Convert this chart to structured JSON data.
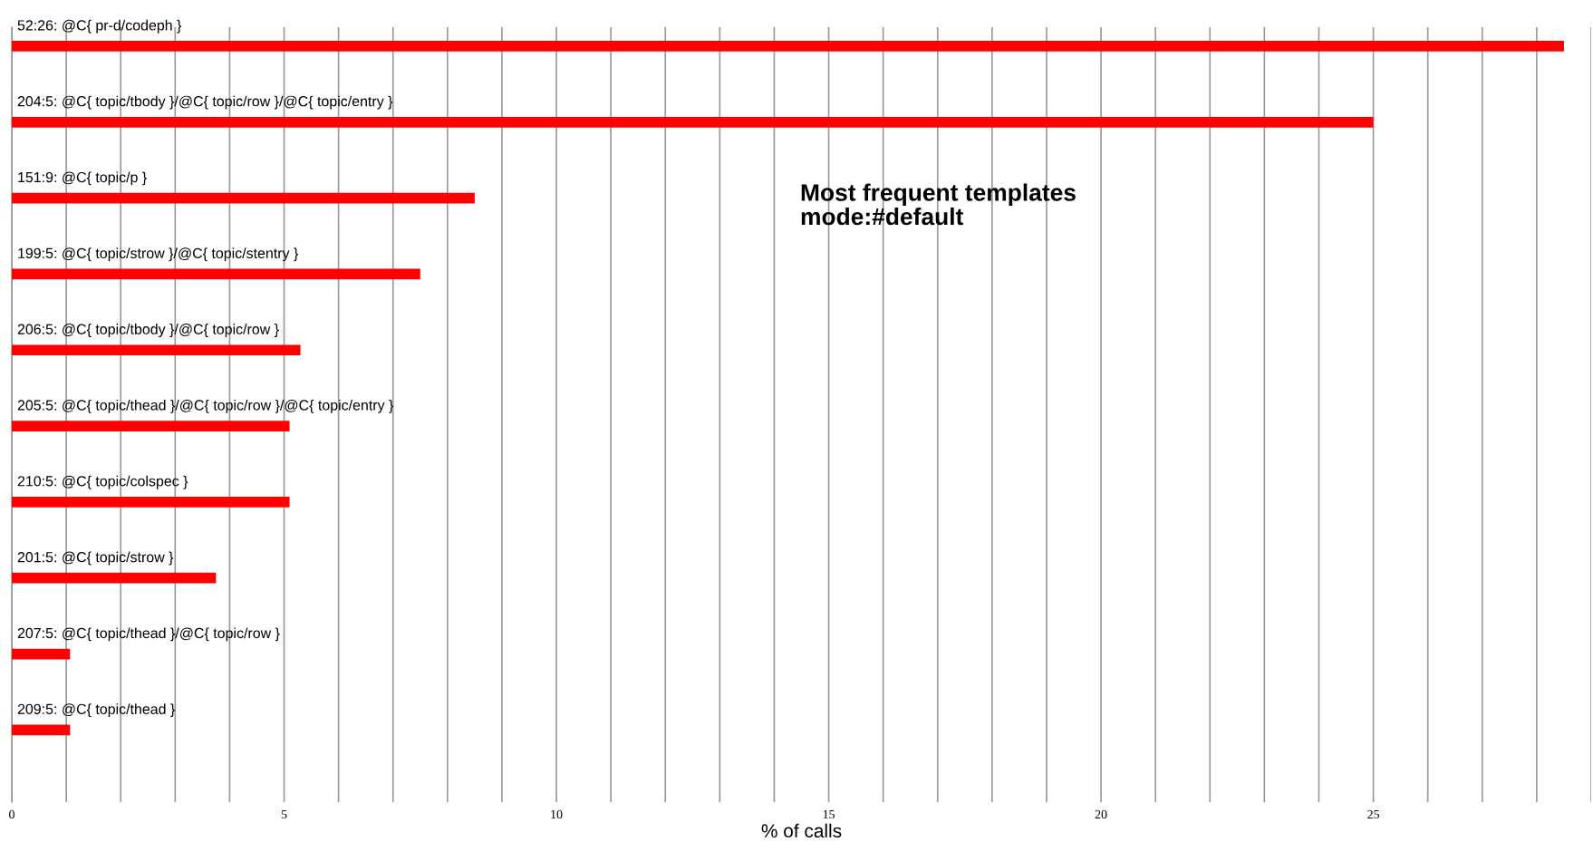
{
  "chart_data": {
    "type": "bar",
    "orientation": "horizontal",
    "title": "Most frequent templates\nmode:#default",
    "xlabel": "% of calls",
    "categories": [
      "52:26: @C{ pr-d/codeph }",
      "204:5: @C{ topic/tbody }/@C{ topic/row }/@C{ topic/entry }",
      "151:9: @C{ topic/p }",
      "199:5: @C{ topic/strow }/@C{ topic/stentry }",
      "206:5: @C{ topic/tbody }/@C{ topic/row }",
      "205:5: @C{ topic/thead }/@C{ topic/row }/@C{ topic/entry }",
      "210:5: @C{ topic/colspec }",
      "201:5: @C{ topic/strow }",
      "207:5: @C{ topic/thead }/@C{ topic/row }",
      "209:5: @C{ topic/thead }"
    ],
    "values": [
      28.5,
      25.0,
      8.5,
      7.5,
      5.3,
      5.1,
      5.1,
      3.75,
      1.07,
      1.07
    ],
    "color": "#ff0000",
    "xlim": [
      0,
      29
    ],
    "xticks": [
      0,
      {
        "value": 1,
        "label": null
      },
      {
        "value": 2,
        "label": null
      },
      {
        "value": 3,
        "label": null
      },
      {
        "value": 4,
        "label": null
      },
      5,
      {
        "value": 6,
        "label": null
      },
      {
        "value": 7,
        "label": null
      },
      {
        "value": 8,
        "label": null
      },
      {
        "value": 9,
        "label": null
      },
      10,
      {
        "value": 11,
        "label": null
      },
      {
        "value": 12,
        "label": null
      },
      {
        "value": 13,
        "label": null
      },
      {
        "value": 14,
        "label": null
      },
      15,
      {
        "value": 16,
        "label": null
      },
      {
        "value": 17,
        "label": null
      },
      {
        "value": 18,
        "label": null
      },
      {
        "value": 19,
        "label": null
      },
      20,
      {
        "value": 21,
        "label": null
      },
      {
        "value": 22,
        "label": null
      },
      {
        "value": 23,
        "label": null
      },
      {
        "value": 24,
        "label": null
      },
      25,
      {
        "value": 26,
        "label": null
      },
      {
        "value": 27,
        "label": null
      },
      {
        "value": 28,
        "label": null
      },
      {
        "value": 29,
        "label": null
      }
    ],
    "grid": "x",
    "tick_labels": "x"
  }
}
